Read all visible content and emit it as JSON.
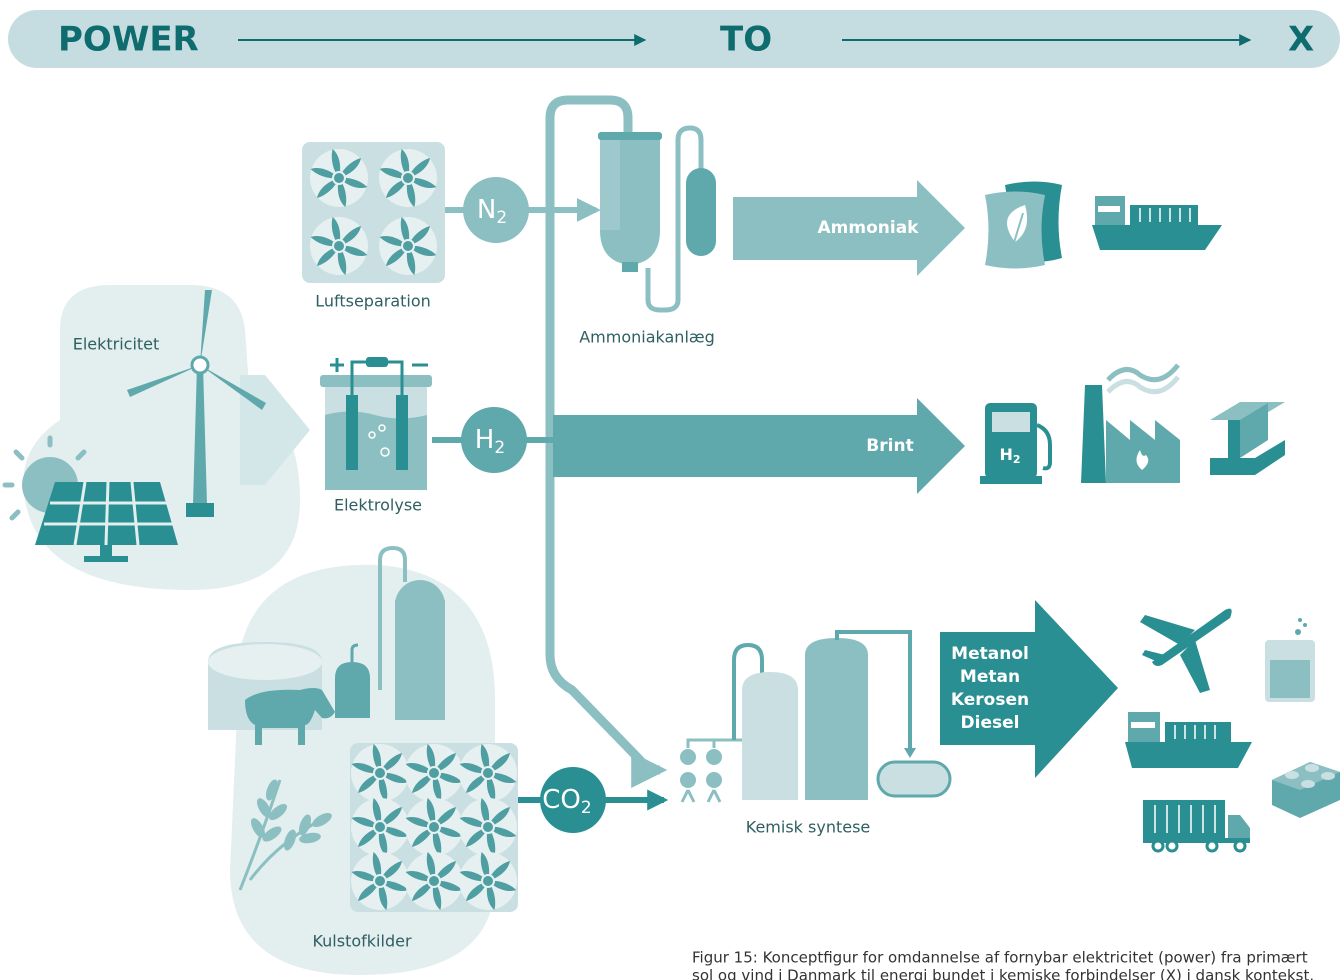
{
  "header": {
    "power": "POWER",
    "to": "TO",
    "x": "X"
  },
  "labels": {
    "air_separation": "Luftseparation",
    "ammonia_plant": "Ammoniakanlæg",
    "electricity": "Elektricitet",
    "electrolysis": "Elektrolyse",
    "carbon_sources": "Kulstofkilder",
    "chemical_synthesis": "Kemisk syntese"
  },
  "molecules": {
    "n2": {
      "symbol": "N",
      "sub": "2"
    },
    "h2": {
      "symbol": "H",
      "sub": "2"
    },
    "co2": {
      "symbol": "CO",
      "sub": "2"
    }
  },
  "products": {
    "ammonia": "Ammoniak",
    "hydrogen": "Brint",
    "fuels": [
      "Metanol",
      "Metan",
      "Kerosen",
      "Diesel"
    ],
    "pump_label": {
      "symbol": "H",
      "sub": "2"
    }
  },
  "caption": {
    "lines": [
      "Figur 15: Konceptfigur for omdannelse af fornybar elektricitet (power) fra primært",
      "sol og vind i Danmark til energi bundet i kemiske forbindelser (X) i dansk kontekst."
    ]
  }
}
